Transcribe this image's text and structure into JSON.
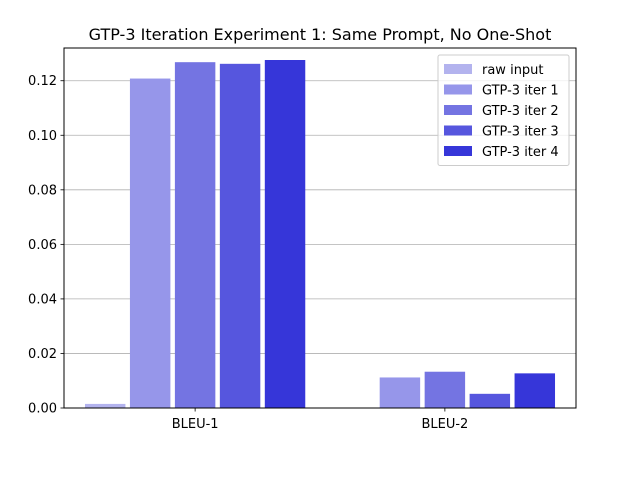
{
  "chart_data": {
    "type": "bar",
    "title": "GTP-3 Iteration Experiment 1: Same Prompt, No One-Shot",
    "xlabel": "",
    "ylabel": "",
    "categories": [
      "BLEU-1",
      "BLEU-2"
    ],
    "ylim": [
      0,
      0.132
    ],
    "yticks": [
      0.0,
      0.02,
      0.04,
      0.06,
      0.08,
      0.1,
      0.12
    ],
    "ytick_labels": [
      "0.00",
      "0.02",
      "0.04",
      "0.06",
      "0.08",
      "0.10",
      "0.12"
    ],
    "grid": "y",
    "legend_position": "top-right",
    "series": [
      {
        "name": "raw input",
        "color": "#b3b3ee",
        "values": [
          0.0015,
          0.0
        ]
      },
      {
        "name": "GTP-3 iter 1",
        "color": "#9696ea",
        "values": [
          0.1208,
          0.0112
        ]
      },
      {
        "name": "GTP-3 iter 2",
        "color": "#7474e2",
        "values": [
          0.1268,
          0.0133
        ]
      },
      {
        "name": "GTP-3 iter 3",
        "color": "#5656de",
        "values": [
          0.1262,
          0.0052
        ]
      },
      {
        "name": "GTP-3 iter 4",
        "color": "#3636d9",
        "values": [
          0.1276,
          0.0127
        ]
      }
    ]
  }
}
